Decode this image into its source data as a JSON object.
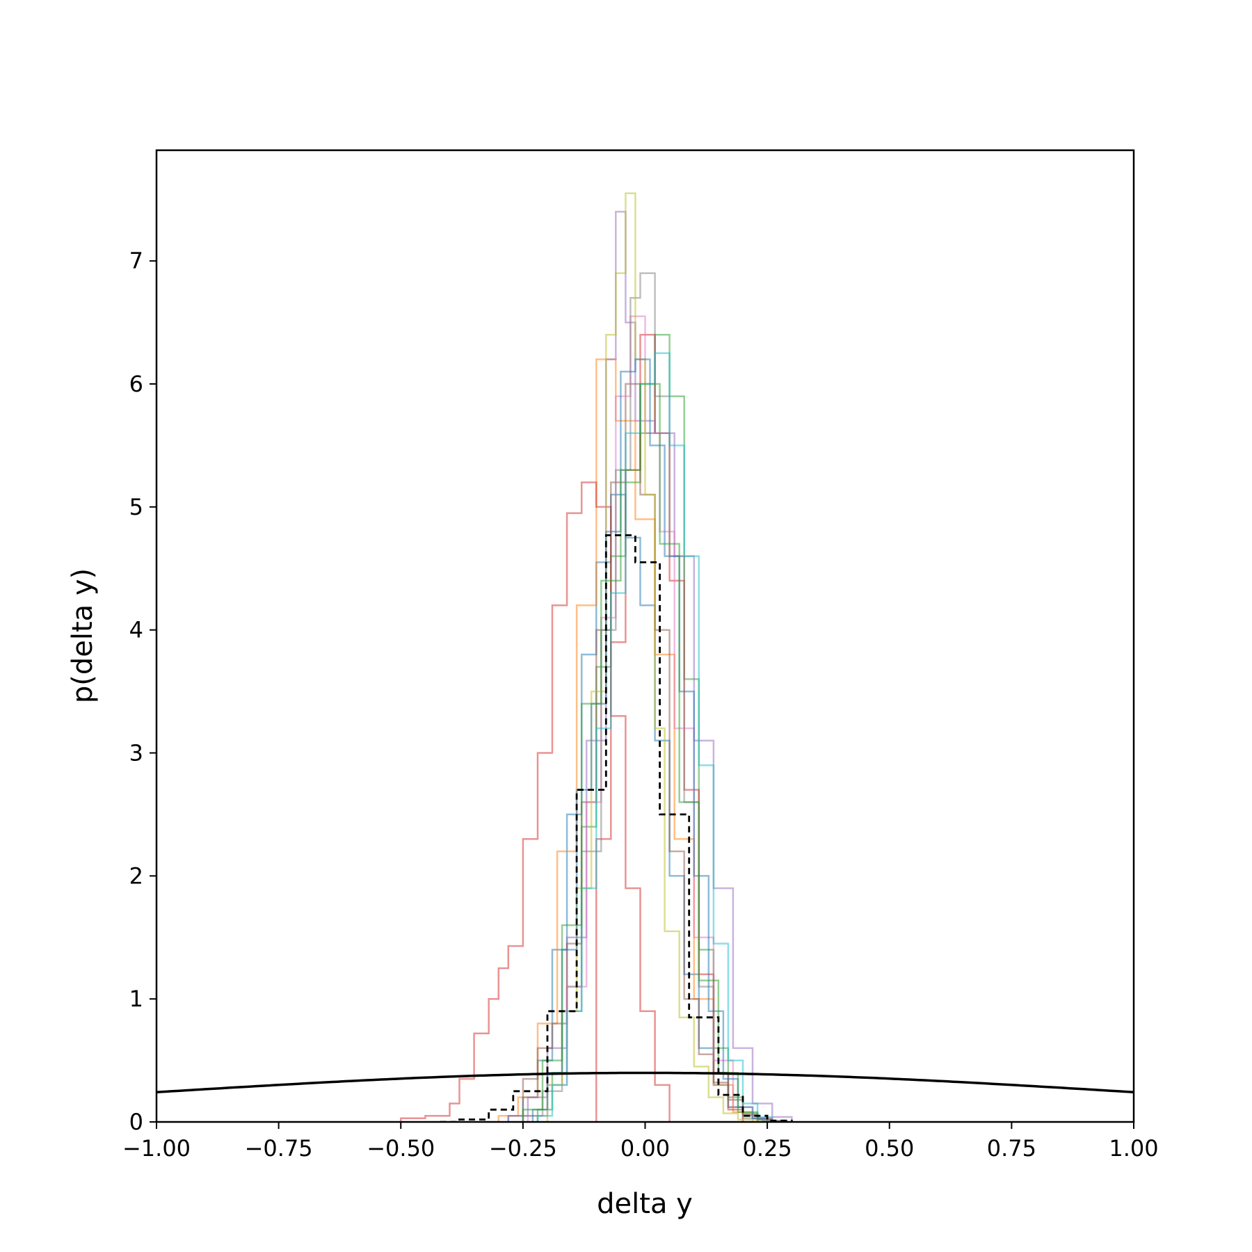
{
  "chart_data": {
    "type": "step-histogram",
    "xlabel": "delta y",
    "ylabel": "p(delta y)",
    "xlim": [
      -1.0,
      1.0
    ],
    "ylim": [
      0,
      7.9
    ],
    "xticks": [
      -1.0,
      -0.75,
      -0.5,
      -0.25,
      0.0,
      0.25,
      0.5,
      0.75,
      1.0
    ],
    "xtick_labels": [
      "−1.00",
      "−0.75",
      "−0.50",
      "−0.25",
      "0.00",
      "0.25",
      "0.50",
      "0.75",
      "1.00"
    ],
    "yticks": [
      0,
      1,
      2,
      3,
      4,
      5,
      6,
      7
    ],
    "ytick_labels": [
      "0",
      "1",
      "2",
      "3",
      "4",
      "5",
      "6",
      "7"
    ],
    "grid": false,
    "legend": "none",
    "colors": [
      "#1f77b4",
      "#ff7f0e",
      "#2ca02c",
      "#d62728",
      "#9467bd",
      "#8c564b",
      "#e377c2",
      "#7f7f7f",
      "#bcbd22",
      "#17becf"
    ],
    "series": [
      {
        "color": "#1f77b4",
        "edges": [
          -0.28,
          -0.25,
          -0.22,
          -0.19,
          -0.16,
          -0.13,
          -0.1,
          -0.07,
          -0.04,
          -0.01,
          0.02,
          0.05,
          0.08,
          0.11,
          0.14,
          0.17,
          0.2,
          0.23,
          0.26,
          0.29
        ],
        "values": [
          0.05,
          0.2,
          0.5,
          1.4,
          2.5,
          3.8,
          4.55,
          5.1,
          4.75,
          4.2,
          3.1,
          2.0,
          1.2,
          0.6,
          0.3,
          0.12,
          0.05,
          0.02,
          0.0
        ]
      },
      {
        "color": "#ff7f0e",
        "edges": [
          -0.3,
          -0.26,
          -0.22,
          -0.18,
          -0.14,
          -0.1,
          -0.06,
          -0.02,
          0.02,
          0.06,
          0.1,
          0.14,
          0.18,
          0.22,
          0.26
        ],
        "values": [
          0.05,
          0.2,
          0.8,
          2.2,
          4.2,
          6.2,
          5.7,
          4.9,
          3.8,
          2.3,
          1.0,
          0.3,
          0.08,
          0.02
        ]
      },
      {
        "color": "#2ca02c",
        "edges": [
          -0.22,
          -0.19,
          -0.16,
          -0.13,
          -0.1,
          -0.07,
          -0.04,
          -0.01,
          0.02,
          0.05,
          0.08,
          0.11,
          0.14,
          0.17,
          0.2,
          0.23,
          0.26
        ],
        "values": [
          0.1,
          0.4,
          1.1,
          2.4,
          3.7,
          4.6,
          5.2,
          5.6,
          6.4,
          5.9,
          3.6,
          1.4,
          0.6,
          0.2,
          0.07,
          0.02
        ]
      },
      {
        "color": "#d62728",
        "edges": [
          -0.5,
          -0.45,
          -0.4,
          -0.38,
          -0.35,
          -0.32,
          -0.3,
          -0.28,
          -0.25,
          -0.22,
          -0.19,
          -0.16,
          -0.13,
          -0.1,
          -0.07,
          -0.04,
          -0.01,
          0.02,
          0.05
        ],
        "values": [
          0.03,
          0.05,
          0.15,
          0.35,
          0.72,
          1.0,
          1.25,
          1.43,
          2.3,
          3.0,
          4.2,
          4.95,
          5.2,
          5.0,
          3.3,
          1.9,
          0.9,
          0.3
        ]
      },
      {
        "color": "#d62728",
        "edges": [
          -0.1,
          -0.07,
          -0.04,
          -0.01,
          0.02,
          0.05,
          0.08,
          0.11,
          0.14,
          0.17,
          0.2
        ],
        "values": [
          2.3,
          3.9,
          5.3,
          6.4,
          5.6,
          4.4,
          2.7,
          1.2,
          0.4,
          0.1
        ]
      },
      {
        "color": "#9467bd",
        "edges": [
          -0.28,
          -0.24,
          -0.2,
          -0.16,
          -0.12,
          -0.08,
          -0.06,
          -0.04,
          -0.02,
          0.02,
          0.06,
          0.1,
          0.14,
          0.18,
          0.22,
          0.26,
          0.3
        ],
        "values": [
          0.05,
          0.2,
          0.6,
          1.5,
          3.1,
          6.2,
          7.4,
          6.5,
          5.7,
          5.6,
          4.6,
          3.1,
          1.9,
          0.6,
          0.15,
          0.04
        ]
      },
      {
        "color": "#8c564b",
        "edges": [
          -0.25,
          -0.22,
          -0.19,
          -0.16,
          -0.13,
          -0.1,
          -0.07,
          -0.04,
          -0.01,
          0.02,
          0.05,
          0.08,
          0.11,
          0.14,
          0.17,
          0.2,
          0.23,
          0.26,
          0.29
        ],
        "values": [
          0.35,
          0.6,
          0.8,
          1.45,
          2.6,
          4.0,
          5.2,
          6.0,
          5.1,
          4.0,
          2.2,
          1.0,
          0.55,
          0.32,
          0.18,
          0.06,
          0.03,
          0.01
        ]
      },
      {
        "color": "#e377c2",
        "edges": [
          -0.24,
          -0.2,
          -0.16,
          -0.12,
          -0.09,
          -0.06,
          -0.03,
          0.0,
          0.03,
          0.06,
          0.1,
          0.14,
          0.18,
          0.22,
          0.26
        ],
        "values": [
          0.05,
          0.3,
          1.1,
          2.6,
          4.1,
          5.9,
          6.55,
          5.6,
          4.8,
          3.2,
          1.5,
          0.5,
          0.12,
          0.03
        ]
      },
      {
        "color": "#7f7f7f",
        "edges": [
          -0.25,
          -0.21,
          -0.17,
          -0.13,
          -0.09,
          -0.06,
          -0.03,
          -0.01,
          0.02,
          0.05,
          0.08,
          0.11,
          0.14,
          0.17,
          0.2,
          0.24,
          0.28
        ],
        "values": [
          0.05,
          0.25,
          0.9,
          2.2,
          4.0,
          5.3,
          6.7,
          6.9,
          5.9,
          4.6,
          2.6,
          1.1,
          0.4,
          0.12,
          0.03,
          0.01
        ]
      },
      {
        "color": "#bcbd22",
        "edges": [
          -0.2,
          -0.17,
          -0.14,
          -0.11,
          -0.08,
          -0.06,
          -0.04,
          -0.02,
          0.0,
          0.02,
          0.04,
          0.07,
          0.1,
          0.13,
          0.16,
          0.19,
          0.22
        ],
        "values": [
          0.3,
          0.9,
          1.9,
          3.5,
          6.4,
          6.9,
          7.55,
          6.2,
          5.1,
          3.2,
          1.55,
          0.85,
          0.45,
          0.2,
          0.07,
          0.02
        ]
      },
      {
        "color": "#17becf",
        "edges": [
          -0.22,
          -0.19,
          -0.16,
          -0.13,
          -0.1,
          -0.07,
          -0.04,
          -0.01,
          0.02,
          0.05,
          0.08,
          0.11,
          0.14,
          0.17,
          0.2,
          0.23,
          0.26
        ],
        "values": [
          0.05,
          0.3,
          0.9,
          1.9,
          3.2,
          4.3,
          5.6,
          6.0,
          6.25,
          5.5,
          4.6,
          2.9,
          1.45,
          0.5,
          0.15,
          0.04
        ]
      },
      {
        "color": "#1f77b4",
        "edges": [
          -0.23,
          -0.2,
          -0.17,
          -0.14,
          -0.11,
          -0.08,
          -0.05,
          -0.02,
          0.01,
          0.04,
          0.07,
          0.1,
          0.13,
          0.16,
          0.19,
          0.22,
          0.25
        ],
        "values": [
          0.1,
          0.4,
          1.4,
          2.7,
          3.4,
          4.8,
          6.1,
          6.2,
          5.5,
          4.6,
          3.5,
          2.0,
          0.9,
          0.35,
          0.12,
          0.03
        ]
      },
      {
        "color": "#2ca02c",
        "edges": [
          -0.25,
          -0.21,
          -0.17,
          -0.13,
          -0.09,
          -0.05,
          -0.01,
          0.03,
          0.07,
          0.11,
          0.15,
          0.19,
          0.23
        ],
        "values": [
          0.1,
          0.5,
          1.6,
          3.4,
          4.4,
          5.3,
          6.0,
          4.7,
          2.6,
          1.15,
          0.4,
          0.08
        ]
      }
    ],
    "reference_histogram": {
      "color": "#000000",
      "style": "dashed",
      "edges": [
        -0.42,
        -0.38,
        -0.32,
        -0.27,
        -0.2,
        -0.14,
        -0.08,
        -0.02,
        0.03,
        0.09,
        0.15,
        0.2,
        0.25,
        0.3
      ],
      "values": [
        0.0,
        0.02,
        0.1,
        0.25,
        0.9,
        2.7,
        4.77,
        4.55,
        2.5,
        0.85,
        0.22,
        0.05,
        0.01
      ]
    },
    "reference_curve": {
      "color": "#000000",
      "type": "gaussian pdf",
      "mean": 0.0,
      "sigma": 1.0
    }
  }
}
